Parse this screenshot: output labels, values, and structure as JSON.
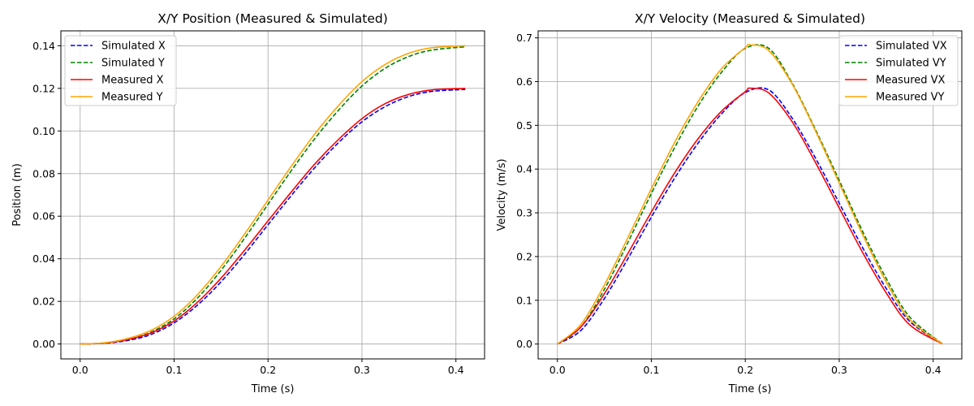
{
  "chart_data": [
    {
      "type": "line",
      "title": "X/Y Position (Measured & Simulated)",
      "xlabel": "Time (s)",
      "ylabel": "Position (m)",
      "xlim": [
        -0.0205,
        0.4305
      ],
      "ylim": [
        -0.007,
        0.147
      ],
      "xticks": [
        0.0,
        0.1,
        0.2,
        0.3,
        0.4
      ],
      "yticks": [
        0.0,
        0.02,
        0.04,
        0.06,
        0.08,
        0.1,
        0.12,
        0.14
      ],
      "xtick_labels": [
        "0.0",
        "0.1",
        "0.2",
        "0.3",
        "0.4"
      ],
      "ytick_labels": [
        "0.00",
        "0.02",
        "0.04",
        "0.06",
        "0.08",
        "0.10",
        "0.12",
        "0.14"
      ],
      "grid": true,
      "legend": "upper-left",
      "x": [
        0,
        0.025,
        0.05,
        0.075,
        0.1,
        0.125,
        0.15,
        0.175,
        0.2,
        0.225,
        0.25,
        0.275,
        0.3,
        0.325,
        0.35,
        0.375,
        0.41
      ],
      "series": [
        {
          "name": "Simulated X",
          "color": "#0000ff",
          "style": "dashed",
          "x": [
            0,
            0.025,
            0.05,
            0.075,
            0.1,
            0.125,
            0.15,
            0.175,
            0.2,
            0.225,
            0.25,
            0.275,
            0.3,
            0.325,
            0.35,
            0.375,
            0.41
          ],
          "values": [
            0.0,
            0.0003,
            0.0016,
            0.0044,
            0.0099,
            0.0183,
            0.0292,
            0.0421,
            0.056,
            0.0698,
            0.0829,
            0.0945,
            0.1043,
            0.1115,
            0.1162,
            0.1186,
            0.1195
          ]
        },
        {
          "name": "Simulated Y",
          "color": "#008000",
          "style": "dashed",
          "x": [
            0,
            0.025,
            0.05,
            0.075,
            0.1,
            0.125,
            0.15,
            0.175,
            0.2,
            0.225,
            0.25,
            0.275,
            0.3,
            0.325,
            0.35,
            0.375,
            0.41
          ],
          "values": [
            0.0,
            0.0004,
            0.002,
            0.0055,
            0.0118,
            0.0216,
            0.0346,
            0.0496,
            0.0656,
            0.0815,
            0.0965,
            0.1097,
            0.1211,
            0.1295,
            0.135,
            0.138,
            0.1395
          ]
        },
        {
          "name": "Measured X",
          "color": "#ff0000",
          "style": "solid",
          "x": [
            0,
            0.025,
            0.05,
            0.075,
            0.1,
            0.125,
            0.15,
            0.175,
            0.2,
            0.225,
            0.25,
            0.275,
            0.3,
            0.325,
            0.35,
            0.375,
            0.41
          ],
          "values": [
            0.0,
            0.0004,
            0.002,
            0.0051,
            0.0108,
            0.0196,
            0.0309,
            0.044,
            0.0578,
            0.0715,
            0.0846,
            0.096,
            0.1058,
            0.1129,
            0.1172,
            0.1193,
            0.12
          ]
        },
        {
          "name": "Measured Y",
          "color": "#ffa500",
          "style": "solid",
          "x": [
            0,
            0.025,
            0.05,
            0.075,
            0.1,
            0.125,
            0.15,
            0.175,
            0.2,
            0.225,
            0.25,
            0.275,
            0.3,
            0.325,
            0.35,
            0.375,
            0.41
          ],
          "values": [
            0.0,
            0.0005,
            0.0025,
            0.0063,
            0.013,
            0.0232,
            0.0364,
            0.0516,
            0.0676,
            0.0836,
            0.0987,
            0.1119,
            0.1232,
            0.1313,
            0.1365,
            0.1391,
            0.14
          ]
        }
      ]
    },
    {
      "type": "line",
      "title": "X/Y Velocity (Measured & Simulated)",
      "xlabel": "Time (s)",
      "ylabel": "Velocity (m/s)",
      "xlim": [
        -0.0205,
        0.4305
      ],
      "ylim": [
        -0.034,
        0.716
      ],
      "xticks": [
        0.0,
        0.1,
        0.2,
        0.3,
        0.4
      ],
      "yticks": [
        0.0,
        0.1,
        0.2,
        0.3,
        0.4,
        0.5,
        0.6,
        0.7
      ],
      "xtick_labels": [
        "0.0",
        "0.1",
        "0.2",
        "0.3",
        "0.4"
      ],
      "ytick_labels": [
        "0.0",
        "0.1",
        "0.2",
        "0.3",
        "0.4",
        "0.5",
        "0.6",
        "0.7"
      ],
      "grid": true,
      "legend": "upper-right",
      "series": [
        {
          "name": "Simulated VX",
          "color": "#0000ff",
          "style": "dashed",
          "x": [
            0,
            0.025,
            0.05,
            0.075,
            0.1,
            0.125,
            0.15,
            0.175,
            0.2,
            0.225,
            0.25,
            0.275,
            0.3,
            0.325,
            0.35,
            0.375,
            0.41
          ],
          "values": [
            0.0,
            0.031,
            0.104,
            0.195,
            0.29,
            0.38,
            0.46,
            0.527,
            0.575,
            0.581,
            0.516,
            0.424,
            0.322,
            0.22,
            0.127,
            0.052,
            0.0
          ]
        },
        {
          "name": "Simulated VY",
          "color": "#008000",
          "style": "dashed",
          "x": [
            0,
            0.025,
            0.05,
            0.075,
            0.1,
            0.125,
            0.15,
            0.175,
            0.2,
            0.225,
            0.25,
            0.275,
            0.3,
            0.325,
            0.35,
            0.375,
            0.41
          ],
          "values": [
            0.0,
            0.039,
            0.125,
            0.232,
            0.344,
            0.45,
            0.545,
            0.622,
            0.676,
            0.676,
            0.596,
            0.489,
            0.374,
            0.257,
            0.15,
            0.062,
            0.0
          ]
        },
        {
          "name": "Measured VX",
          "color": "#ff0000",
          "style": "solid",
          "x": [
            0,
            0.025,
            0.05,
            0.075,
            0.1,
            0.125,
            0.15,
            0.175,
            0.2,
            0.205,
            0.225,
            0.25,
            0.275,
            0.3,
            0.325,
            0.35,
            0.375,
            0.41
          ],
          "values": [
            0.0,
            0.039,
            0.115,
            0.207,
            0.302,
            0.392,
            0.47,
            0.533,
            0.577,
            0.585,
            0.574,
            0.508,
            0.414,
            0.311,
            0.209,
            0.117,
            0.044,
            0.0
          ]
        },
        {
          "name": "Measured VY",
          "color": "#ffa500",
          "style": "solid",
          "x": [
            0,
            0.025,
            0.05,
            0.075,
            0.1,
            0.125,
            0.15,
            0.175,
            0.2,
            0.205,
            0.225,
            0.25,
            0.275,
            0.3,
            0.325,
            0.35,
            0.375,
            0.41
          ],
          "values": [
            0.0,
            0.045,
            0.135,
            0.243,
            0.355,
            0.462,
            0.555,
            0.63,
            0.678,
            0.684,
            0.671,
            0.594,
            0.486,
            0.368,
            0.25,
            0.142,
            0.056,
            0.0
          ]
        }
      ]
    }
  ]
}
